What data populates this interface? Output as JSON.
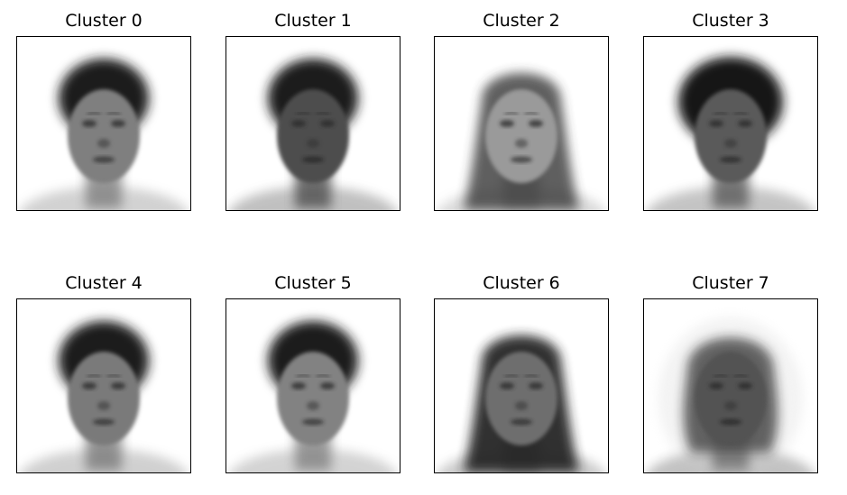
{
  "figure": {
    "panels": [
      {
        "title": "Cluster 0",
        "image": "average-face-cluster-0",
        "skin": "#7f7f7f",
        "hair": "#1c1c1c",
        "hair_style": "short"
      },
      {
        "title": "Cluster 1",
        "image": "average-face-cluster-1",
        "skin": "#4d4d4d",
        "hair": "#1a1a1a",
        "hair_style": "short"
      },
      {
        "title": "Cluster 2",
        "image": "average-face-cluster-2",
        "skin": "#9a9a9a",
        "hair": "#383838",
        "hair_style": "long"
      },
      {
        "title": "Cluster 3",
        "image": "average-face-cluster-3",
        "skin": "#5a5a5a",
        "hair": "#141414",
        "hair_style": "puffy"
      },
      {
        "title": "Cluster 4",
        "image": "average-face-cluster-4",
        "skin": "#7a7a7a",
        "hair": "#1e1e1e",
        "hair_style": "short"
      },
      {
        "title": "Cluster 5",
        "image": "average-face-cluster-5",
        "skin": "#828282",
        "hair": "#1e1e1e",
        "hair_style": "short"
      },
      {
        "title": "Cluster 6",
        "image": "average-face-cluster-6",
        "skin": "#6e6e6e",
        "hair": "#262626",
        "hair_style": "long-dark"
      },
      {
        "title": "Cluster 7",
        "image": "average-face-cluster-7",
        "skin": "#525252",
        "hair": "#1c1c1c",
        "hair_style": "medium"
      }
    ]
  }
}
